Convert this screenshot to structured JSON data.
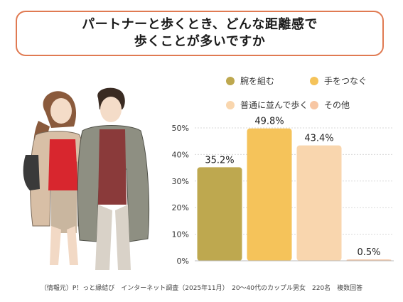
{
  "title": {
    "line1": "パートナーと歩くとき、どんな距離感で",
    "line2": "歩くことが多いですか"
  },
  "illustration": {
    "description_icon": "couple-walking-illustration"
  },
  "legend": [
    {
      "label": "腕を組む",
      "color": "#bea84f"
    },
    {
      "label": "手をつなぐ",
      "color": "#f5c35a"
    },
    {
      "label": "普通に並んで歩く",
      "color": "#f9d6ae"
    },
    {
      "label": "その他",
      "color": "#f7c6a3"
    }
  ],
  "chart_data": {
    "type": "bar",
    "categories": [
      "腕を組む",
      "手をつなぐ",
      "普通に並んで歩く",
      "その他"
    ],
    "values": [
      35.2,
      49.8,
      43.4,
      0.5
    ],
    "value_labels": [
      "35.2%",
      "49.8%",
      "43.4%",
      "0.5%"
    ],
    "colors": [
      "#bea84f",
      "#f5c35a",
      "#f9d6ae",
      "#f7c6a3"
    ],
    "ylim": [
      0,
      50
    ],
    "yticks": [
      0,
      10,
      20,
      30,
      40,
      50
    ],
    "ytick_labels": [
      "0%",
      "10%",
      "20%",
      "30%",
      "40%",
      "50%"
    ],
    "grid": true,
    "legend_position": "top-right"
  },
  "footnote": "（情報元）P！っと縁結び　インターネット調査（2025年11月）　20〜40代のカップル男女　220名　複数回答"
}
